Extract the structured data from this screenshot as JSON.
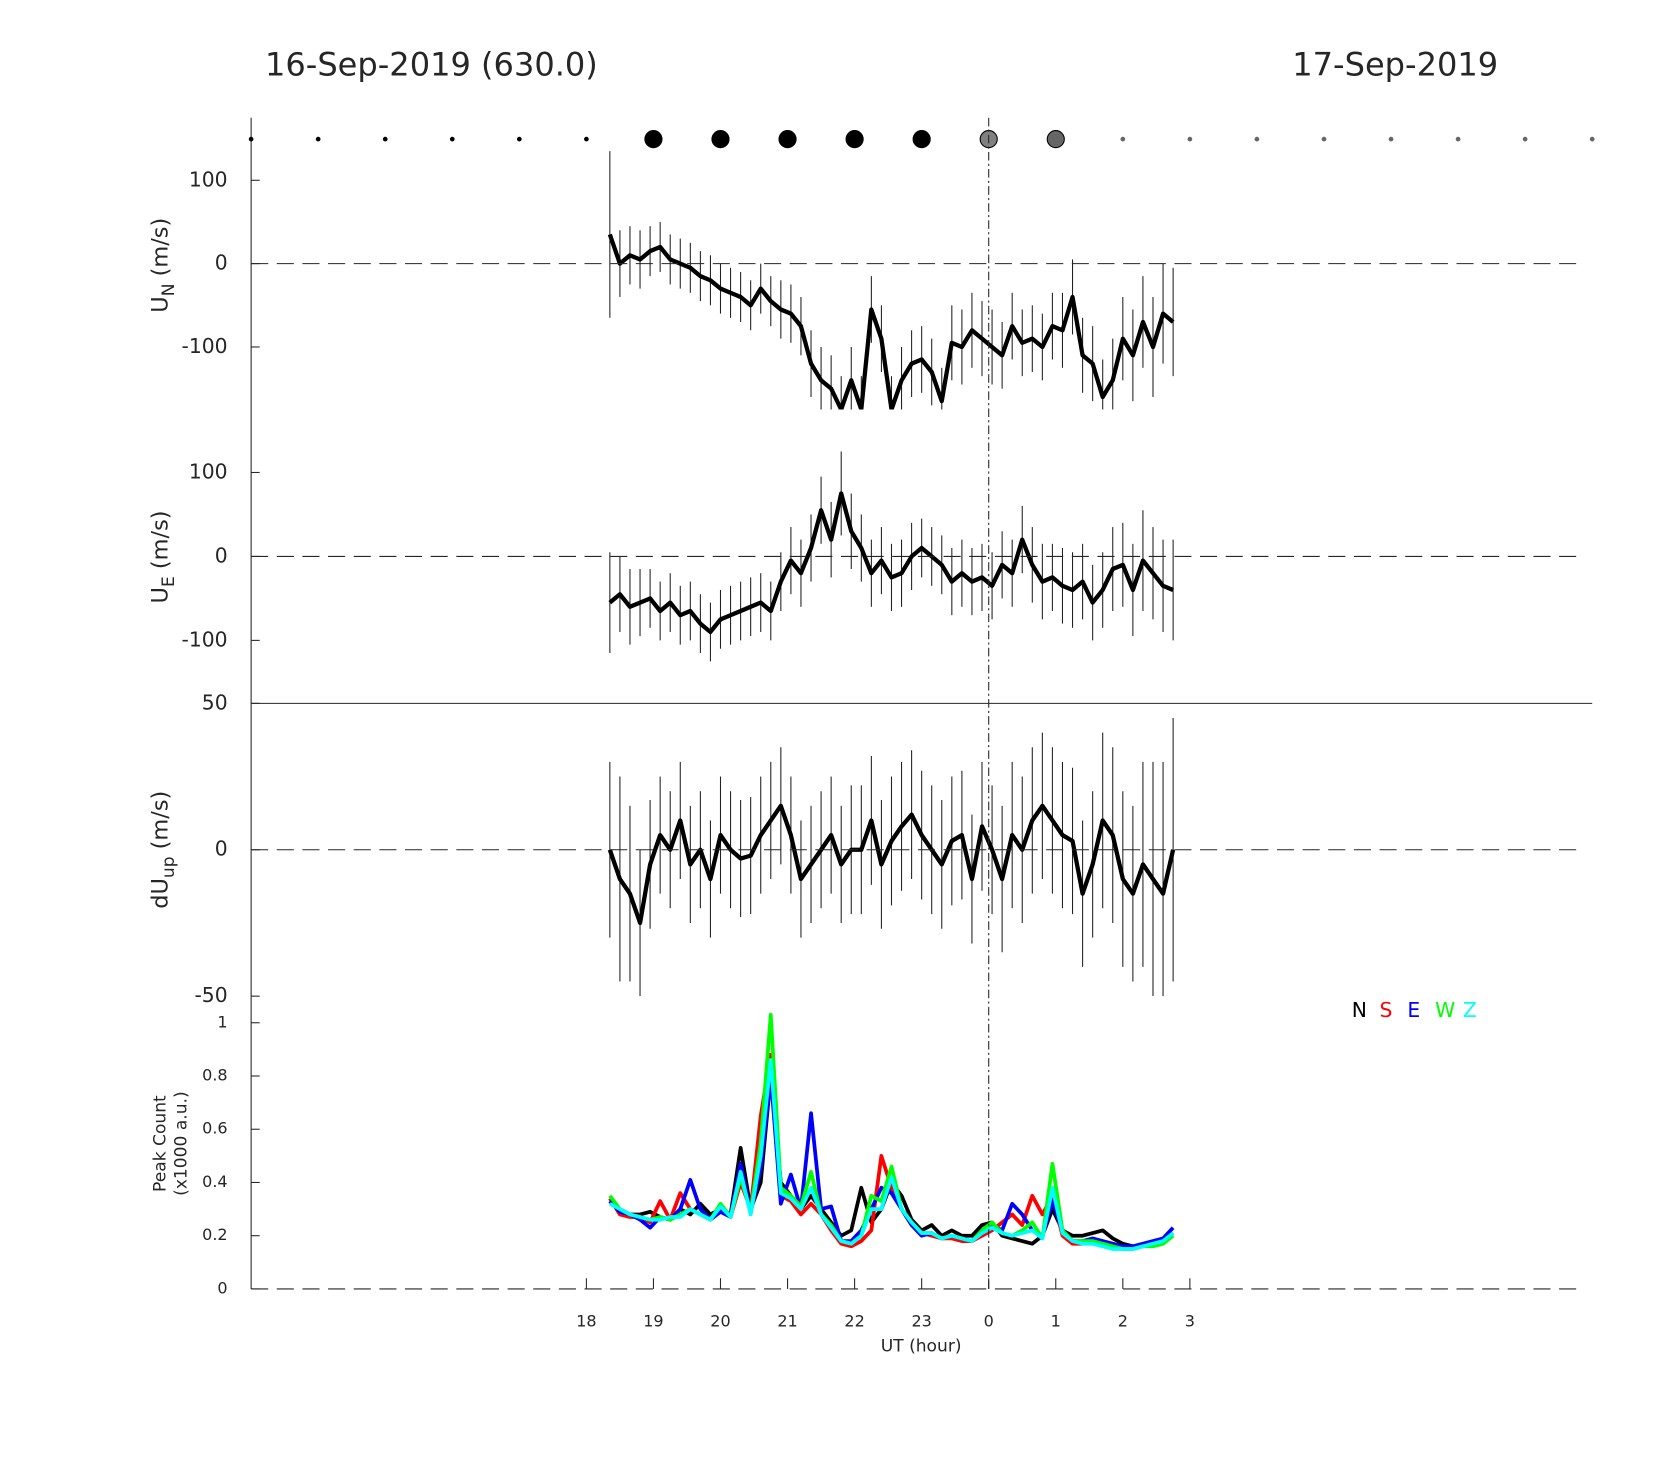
{
  "chart_data": [
    {
      "type": "line",
      "title": "16-Sep-2019 (630.0)",
      "title_right": "17-Sep-2019",
      "ylabel": "U",
      "ylabel_sub": "N",
      "ylabel_unit": " (m/s)",
      "color": "#000000",
      "xlim": [
        13,
        33
      ],
      "ylim": [
        -175,
        175
      ],
      "yticks": [
        -100,
        0,
        100
      ],
      "zero_line": true,
      "x": [
        18.35,
        18.5,
        18.65,
        18.8,
        18.95,
        19.1,
        19.25,
        19.4,
        19.55,
        19.7,
        19.85,
        20,
        20.15,
        20.3,
        20.45,
        20.6,
        20.75,
        20.9,
        21.05,
        21.2,
        21.35,
        21.5,
        21.65,
        21.8,
        21.95,
        22.1,
        22.25,
        22.4,
        22.55,
        22.7,
        22.85,
        23,
        23.15,
        23.3,
        23.45,
        23.6,
        23.75,
        23.9,
        24.05,
        24.2,
        24.35,
        24.5,
        24.65,
        24.8,
        24.95,
        25.1,
        25.25,
        25.4,
        25.55,
        25.7,
        25.85,
        26,
        26.15,
        26.3,
        26.45,
        26.6,
        26.75
      ],
      "values": [
        35,
        0,
        10,
        5,
        15,
        20,
        5,
        0,
        -5,
        -15,
        -20,
        -30,
        -35,
        -40,
        -50,
        -30,
        -45,
        -55,
        -60,
        -75,
        -120,
        -140,
        -150,
        -175,
        -140,
        -175,
        -55,
        -90,
        -175,
        -140,
        -120,
        -115,
        -130,
        -165,
        -95,
        -100,
        -80,
        -90,
        -100,
        -110,
        -75,
        -95,
        -90,
        -100,
        -75,
        -80,
        -40,
        -110,
        -120,
        -160,
        -140,
        -90,
        -110,
        -70,
        -100,
        -60,
        -70
      ],
      "errors": [
        100,
        40,
        35,
        35,
        30,
        30,
        30,
        30,
        30,
        30,
        30,
        30,
        30,
        30,
        30,
        30,
        30,
        35,
        35,
        35,
        40,
        40,
        40,
        40,
        40,
        40,
        40,
        40,
        40,
        40,
        40,
        40,
        40,
        40,
        45,
        45,
        45,
        45,
        45,
        40,
        40,
        40,
        40,
        40,
        40,
        45,
        45,
        45,
        45,
        45,
        50,
        50,
        55,
        55,
        60,
        60,
        65
      ]
    },
    {
      "type": "line",
      "ylabel": "U",
      "ylabel_sub": "E",
      "ylabel_unit": " (m/s)",
      "color": "#000000",
      "xlim": [
        13,
        33
      ],
      "ylim": [
        -175,
        175
      ],
      "yticks": [
        -100,
        0,
        100
      ],
      "zero_line": true,
      "x": [
        18.35,
        18.5,
        18.65,
        18.8,
        18.95,
        19.1,
        19.25,
        19.4,
        19.55,
        19.7,
        19.85,
        20,
        20.15,
        20.3,
        20.45,
        20.6,
        20.75,
        20.9,
        21.05,
        21.2,
        21.35,
        21.5,
        21.65,
        21.8,
        21.95,
        22.1,
        22.25,
        22.4,
        22.55,
        22.7,
        22.85,
        23,
        23.15,
        23.3,
        23.45,
        23.6,
        23.75,
        23.9,
        24.05,
        24.2,
        24.35,
        24.5,
        24.65,
        24.8,
        24.95,
        25.1,
        25.25,
        25.4,
        25.55,
        25.7,
        25.85,
        26,
        26.15,
        26.3,
        26.45,
        26.6,
        26.75
      ],
      "values": [
        -55,
        -45,
        -60,
        -55,
        -50,
        -65,
        -55,
        -70,
        -65,
        -80,
        -90,
        -75,
        -70,
        -65,
        -60,
        -55,
        -65,
        -30,
        -5,
        -20,
        10,
        55,
        20,
        75,
        30,
        10,
        -20,
        -5,
        -25,
        -20,
        0,
        10,
        0,
        -10,
        -30,
        -20,
        -30,
        -25,
        -35,
        -10,
        -20,
        20,
        -10,
        -30,
        -25,
        -35,
        -40,
        -30,
        -55,
        -40,
        -15,
        -10,
        -40,
        -5,
        -20,
        -35,
        -40
      ],
      "errors": [
        60,
        45,
        45,
        40,
        35,
        35,
        35,
        35,
        35,
        35,
        35,
        35,
        35,
        35,
        35,
        35,
        35,
        35,
        40,
        40,
        40,
        40,
        45,
        50,
        45,
        40,
        40,
        40,
        40,
        40,
        40,
        35,
        35,
        35,
        40,
        40,
        40,
        40,
        40,
        40,
        40,
        40,
        45,
        45,
        40,
        45,
        45,
        45,
        45,
        45,
        50,
        50,
        55,
        60,
        55,
        55,
        60
      ]
    },
    {
      "type": "line",
      "ylabel": "dU",
      "ylabel_sub": "up",
      "ylabel_unit": " (m/s)",
      "color": "#000000",
      "xlim": [
        13,
        33
      ],
      "ylim": [
        -50,
        50
      ],
      "yticks": [
        -50,
        0,
        50
      ],
      "zero_line": true,
      "x": [
        18.35,
        18.5,
        18.65,
        18.8,
        18.95,
        19.1,
        19.25,
        19.4,
        19.55,
        19.7,
        19.85,
        20,
        20.15,
        20.3,
        20.45,
        20.6,
        20.75,
        20.9,
        21.05,
        21.2,
        21.35,
        21.5,
        21.65,
        21.8,
        21.95,
        22.1,
        22.25,
        22.4,
        22.55,
        22.7,
        22.85,
        23,
        23.15,
        23.3,
        23.45,
        23.6,
        23.75,
        23.9,
        24.05,
        24.2,
        24.35,
        24.5,
        24.65,
        24.8,
        24.95,
        25.1,
        25.25,
        25.4,
        25.55,
        25.7,
        25.85,
        26,
        26.15,
        26.3,
        26.45,
        26.6,
        26.75
      ],
      "values": [
        0,
        -10,
        -15,
        -25,
        -5,
        5,
        0,
        10,
        -5,
        0,
        -10,
        5,
        0,
        -3,
        -2,
        5,
        10,
        15,
        5,
        -10,
        -5,
        0,
        5,
        -5,
        0,
        0,
        10,
        -5,
        3,
        8,
        12,
        5,
        0,
        -5,
        3,
        5,
        -10,
        8,
        0,
        -10,
        5,
        0,
        10,
        15,
        10,
        5,
        3,
        -15,
        -5,
        10,
        5,
        -10,
        -15,
        -5,
        -10,
        -15,
        0
      ],
      "errors": [
        30,
        35,
        30,
        25,
        22,
        20,
        20,
        20,
        20,
        20,
        20,
        20,
        20,
        20,
        20,
        20,
        20,
        20,
        20,
        20,
        20,
        20,
        20,
        20,
        22,
        22,
        22,
        22,
        22,
        22,
        22,
        22,
        22,
        22,
        22,
        22,
        22,
        22,
        22,
        25,
        25,
        25,
        25,
        25,
        25,
        25,
        25,
        25,
        25,
        30,
        30,
        30,
        30,
        35,
        40,
        45,
        45
      ]
    },
    {
      "type": "multiline",
      "ylabel": "Peak Count",
      "ylabel_line2": "(x1000 a.u.)",
      "xlabel": "UT (hour)",
      "xlim": [
        13,
        33
      ],
      "ylim": [
        0,
        1.1
      ],
      "yticks": [
        0,
        0.2,
        0.4,
        0.6,
        0.8,
        1
      ],
      "zero_line": true,
      "legend": "top-right",
      "xticks": [
        18,
        19,
        20,
        21,
        22,
        23,
        {
          "value": 24,
          "label": "0"
        },
        {
          "value": 25,
          "label": "1"
        },
        {
          "value": 26,
          "label": "2"
        },
        {
          "value": 27,
          "label": "3"
        }
      ],
      "x": [
        18.35,
        18.5,
        18.65,
        18.8,
        18.95,
        19.1,
        19.25,
        19.4,
        19.55,
        19.7,
        19.85,
        20,
        20.15,
        20.3,
        20.45,
        20.6,
        20.75,
        20.9,
        21.05,
        21.2,
        21.35,
        21.5,
        21.65,
        21.8,
        21.95,
        22.1,
        22.25,
        22.4,
        22.55,
        22.7,
        22.85,
        23,
        23.15,
        23.3,
        23.45,
        23.6,
        23.75,
        23.9,
        24.05,
        24.2,
        24.35,
        24.5,
        24.65,
        24.8,
        24.95,
        25.1,
        25.25,
        25.4,
        25.55,
        25.7,
        25.85,
        26,
        26.15,
        26.3,
        26.45,
        26.6,
        26.75
      ],
      "series": [
        {
          "name": "N",
          "color": "#000000",
          "values": [
            0.33,
            0.3,
            0.28,
            0.28,
            0.29,
            0.27,
            0.26,
            0.3,
            0.28,
            0.32,
            0.28,
            0.3,
            0.28,
            0.53,
            0.3,
            0.4,
            0.8,
            0.4,
            0.35,
            0.3,
            0.35,
            0.3,
            0.25,
            0.2,
            0.22,
            0.38,
            0.25,
            0.3,
            0.4,
            0.35,
            0.26,
            0.22,
            0.24,
            0.2,
            0.22,
            0.2,
            0.2,
            0.24,
            0.25,
            0.2,
            0.19,
            0.18,
            0.17,
            0.2,
            0.3,
            0.22,
            0.2,
            0.2,
            0.21,
            0.22,
            0.19,
            0.17,
            0.16,
            0.16,
            0.17,
            0.18,
            0.21
          ]
        },
        {
          "name": "S",
          "color": "#ff0000",
          "values": [
            0.34,
            0.28,
            0.27,
            0.27,
            0.25,
            0.33,
            0.26,
            0.36,
            0.3,
            0.28,
            0.26,
            0.3,
            0.27,
            0.4,
            0.3,
            0.65,
            0.88,
            0.35,
            0.33,
            0.28,
            0.32,
            0.28,
            0.22,
            0.17,
            0.16,
            0.18,
            0.22,
            0.5,
            0.38,
            0.3,
            0.24,
            0.21,
            0.2,
            0.19,
            0.19,
            0.18,
            0.18,
            0.2,
            0.22,
            0.25,
            0.28,
            0.24,
            0.35,
            0.28,
            0.35,
            0.2,
            0.17,
            0.17,
            0.18,
            0.17,
            0.16,
            0.15,
            0.15,
            0.16,
            0.17,
            0.18,
            0.2
          ]
        },
        {
          "name": "E",
          "color": "#0000ff",
          "values": [
            0.33,
            0.29,
            0.28,
            0.26,
            0.23,
            0.27,
            0.26,
            0.3,
            0.41,
            0.3,
            0.26,
            0.29,
            0.27,
            0.47,
            0.29,
            0.45,
            0.8,
            0.32,
            0.43,
            0.3,
            0.66,
            0.3,
            0.31,
            0.18,
            0.18,
            0.22,
            0.3,
            0.38,
            0.36,
            0.3,
            0.24,
            0.2,
            0.21,
            0.19,
            0.2,
            0.19,
            0.18,
            0.22,
            0.24,
            0.22,
            0.32,
            0.28,
            0.22,
            0.2,
            0.33,
            0.22,
            0.18,
            0.18,
            0.19,
            0.18,
            0.17,
            0.16,
            0.16,
            0.17,
            0.18,
            0.19,
            0.23
          ]
        },
        {
          "name": "W",
          "color": "#00ff00",
          "values": [
            0.35,
            0.3,
            0.28,
            0.27,
            0.26,
            0.27,
            0.26,
            0.28,
            0.3,
            0.28,
            0.26,
            0.32,
            0.27,
            0.42,
            0.29,
            0.55,
            1.03,
            0.38,
            0.35,
            0.31,
            0.44,
            0.28,
            0.24,
            0.18,
            0.17,
            0.2,
            0.35,
            0.33,
            0.46,
            0.3,
            0.25,
            0.21,
            0.21,
            0.19,
            0.2,
            0.19,
            0.18,
            0.22,
            0.25,
            0.21,
            0.2,
            0.22,
            0.25,
            0.19,
            0.47,
            0.22,
            0.18,
            0.18,
            0.18,
            0.17,
            0.16,
            0.15,
            0.15,
            0.16,
            0.16,
            0.17,
            0.2
          ]
        },
        {
          "name": "Z",
          "color": "#00ffff",
          "values": [
            0.32,
            0.3,
            0.28,
            0.27,
            0.26,
            0.26,
            0.27,
            0.27,
            0.3,
            0.28,
            0.26,
            0.31,
            0.27,
            0.44,
            0.28,
            0.5,
            0.86,
            0.36,
            0.34,
            0.3,
            0.38,
            0.28,
            0.23,
            0.18,
            0.17,
            0.2,
            0.3,
            0.3,
            0.42,
            0.3,
            0.25,
            0.21,
            0.21,
            0.19,
            0.2,
            0.19,
            0.18,
            0.21,
            0.23,
            0.21,
            0.2,
            0.21,
            0.22,
            0.19,
            0.38,
            0.21,
            0.18,
            0.17,
            0.17,
            0.16,
            0.15,
            0.15,
            0.15,
            0.16,
            0.17,
            0.18,
            0.21
          ]
        }
      ]
    }
  ]
}
